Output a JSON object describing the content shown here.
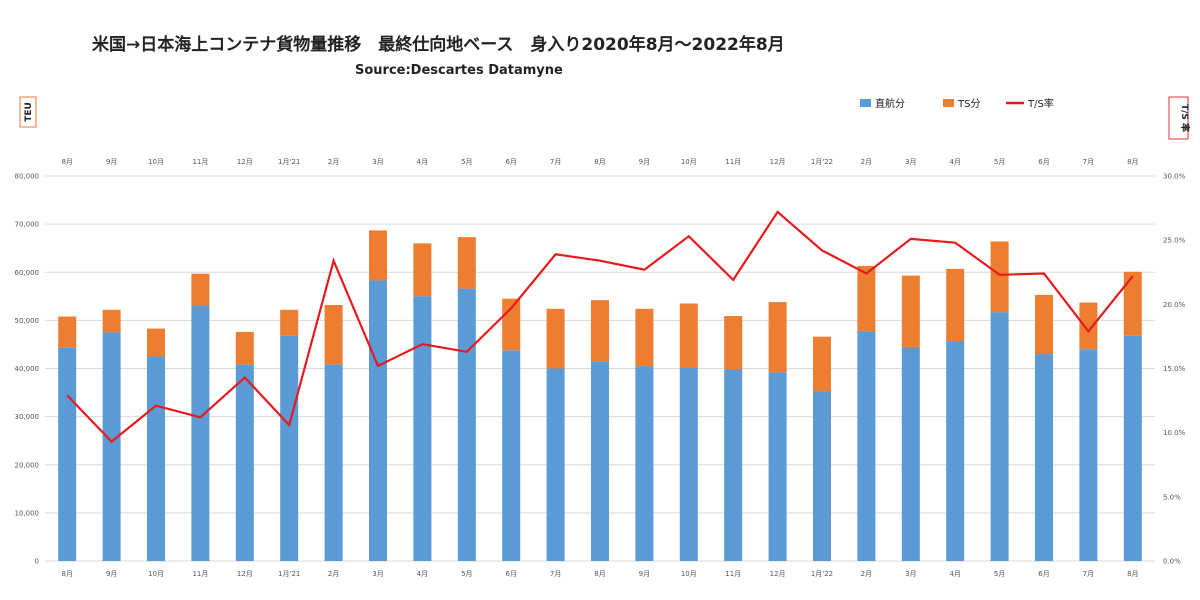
{
  "title": "米国→日本海上コンテナ貨物量推移　最終仕向地ベース　身入り2020年8月～2022年8月",
  "source": "Source:Descartes Datamyne",
  "colors": {
    "direct": "#5b9bd5",
    "ts": "#ed7d31",
    "ratio": "#e8191c"
  },
  "chart_data": {
    "type": "bar",
    "stacked": true,
    "categories": [
      "8月",
      "9月",
      "10月",
      "11月",
      "12月",
      "1月'21",
      "2月",
      "3月",
      "4月",
      "5月",
      "6月",
      "7月",
      "8月",
      "9月",
      "10月",
      "11月",
      "12月",
      "1月'22",
      "2月",
      "3月",
      "4月",
      "5月",
      "6月",
      "7月",
      "8月"
    ],
    "series": [
      {
        "name": "直航分",
        "values": [
          44300,
          47500,
          42500,
          53000,
          40800,
          46800,
          40800,
          58300,
          55000,
          56600,
          43800,
          40000,
          41500,
          40500,
          40100,
          39800,
          39200,
          35300,
          47600,
          44500,
          45700,
          51700,
          43000,
          44000,
          46800
        ]
      },
      {
        "name": "TS分",
        "values": [
          6500,
          4700,
          5800,
          6700,
          6800,
          5400,
          12400,
          10400,
          11000,
          10700,
          10700,
          12400,
          12700,
          11900,
          13400,
          11100,
          14600,
          11300,
          13700,
          14800,
          15000,
          14700,
          12300,
          9700,
          13300
        ]
      },
      {
        "name": "T/S率",
        "axis": "right",
        "type": "line",
        "values": [
          12.9,
          9.3,
          12.1,
          11.2,
          14.3,
          10.6,
          23.4,
          15.2,
          16.9,
          16.3,
          19.7,
          23.9,
          23.4,
          22.7,
          25.3,
          21.9,
          27.2,
          24.2,
          22.4,
          25.1,
          24.8,
          22.3,
          22.4,
          17.9,
          22.2
        ]
      }
    ],
    "ylabel": "TEU",
    "y2label": "T/S 率",
    "ylim": [
      0,
      80000
    ],
    "y2lim": [
      0,
      30
    ],
    "yticks": [
      "0",
      "10,000",
      "20,000",
      "30,000",
      "40,000",
      "50,000",
      "60,000",
      "70,000",
      "80,000"
    ],
    "y2ticks": [
      "0.0%",
      "5.0%",
      "10.0%",
      "15.0%",
      "20.0%",
      "25.0%",
      "30.0%"
    ],
    "grid": true,
    "legend": "top-right"
  }
}
